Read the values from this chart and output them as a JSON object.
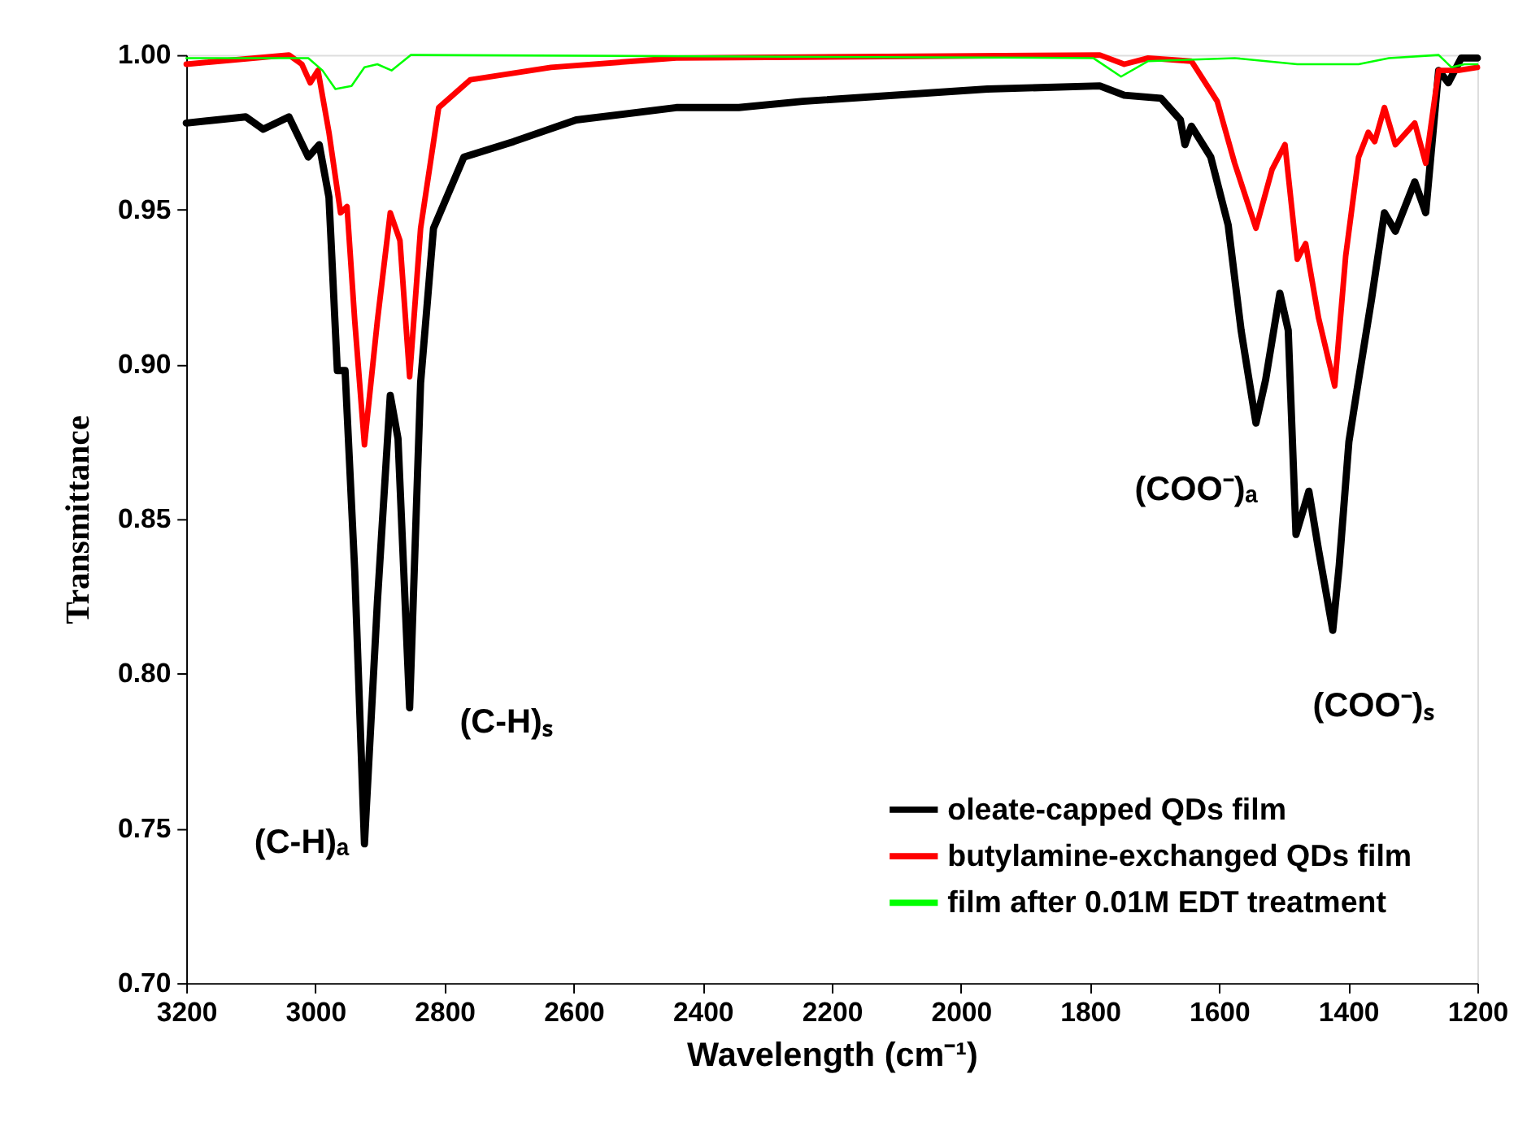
{
  "chart_data": {
    "type": "line",
    "xlabel": "Wavelength (cm⁻¹)",
    "ylabel": "Transmittance",
    "xlim": [
      3200,
      1200
    ],
    "xticks": [
      3200,
      3000,
      2800,
      2600,
      2400,
      2200,
      2000,
      1800,
      1600,
      1400,
      1200
    ],
    "ylim": [
      0.7,
      1.0
    ],
    "yticks": [
      {
        "value": 0.7,
        "label": "0.70"
      },
      {
        "value": 0.75,
        "label": "0.75"
      },
      {
        "value": 0.8,
        "label": "0.80"
      },
      {
        "value": 0.85,
        "label": "0.85"
      },
      {
        "value": 0.9,
        "label": "0.90"
      },
      {
        "value": 0.95,
        "label": "0.95"
      },
      {
        "value": 1.0,
        "label": "1.00"
      }
    ],
    "grid": false,
    "legend": "bottom right",
    "line_style": "solid",
    "marker": "none",
    "annotations": [
      "(C-H)ₐ",
      "(C-H)ₛ",
      "(COO⁻)ₐ",
      "(COO⁻)ₛ"
    ],
    "series": [
      {
        "name": "oleate-capped QDs film",
        "color": "#000000",
        "x": [
          3200,
          3108,
          3081,
          3041,
          3011,
          2994,
          2979,
          2966,
          2954,
          2939,
          2924,
          2904,
          2884,
          2872,
          2854,
          2837,
          2817,
          2770,
          2693,
          2596,
          2441,
          2344,
          2245,
          1959,
          1785,
          1747,
          1690,
          1660,
          1653,
          1643,
          1613,
          1586,
          1566,
          1543,
          1528,
          1506,
          1493,
          1481,
          1461,
          1446,
          1424,
          1414,
          1399,
          1384,
          1364,
          1344,
          1327,
          1297,
          1280,
          1260,
          1245,
          1225,
          1200
        ],
        "values": [
          0.978,
          0.98,
          0.976,
          0.98,
          0.967,
          0.971,
          0.954,
          0.898,
          0.898,
          0.833,
          0.745,
          0.823,
          0.89,
          0.876,
          0.789,
          0.894,
          0.944,
          0.967,
          0.972,
          0.979,
          0.983,
          0.983,
          0.985,
          0.989,
          0.99,
          0.987,
          0.986,
          0.979,
          0.971,
          0.977,
          0.967,
          0.945,
          0.911,
          0.881,
          0.895,
          0.923,
          0.911,
          0.845,
          0.859,
          0.84,
          0.814,
          0.835,
          0.875,
          0.895,
          0.921,
          0.949,
          0.943,
          0.959,
          0.949,
          0.995,
          0.991,
          0.999,
          0.999
        ]
      },
      {
        "name": "butylamine-exchanged QDs film",
        "color": "#ff0000",
        "x": [
          3200,
          3041,
          3021,
          3008,
          2996,
          2979,
          2961,
          2951,
          2939,
          2924,
          2904,
          2884,
          2869,
          2854,
          2837,
          2809,
          2760,
          2635,
          2441,
          1785,
          1747,
          1710,
          1643,
          1603,
          1576,
          1543,
          1518,
          1498,
          1479,
          1466,
          1446,
          1421,
          1404,
          1384,
          1369,
          1359,
          1344,
          1327,
          1297,
          1280,
          1260,
          1230,
          1200
        ],
        "values": [
          0.997,
          1.0,
          0.997,
          0.991,
          0.995,
          0.975,
          0.949,
          0.951,
          0.914,
          0.874,
          0.914,
          0.949,
          0.94,
          0.896,
          0.944,
          0.983,
          0.992,
          0.996,
          0.999,
          1.0,
          0.997,
          0.999,
          0.998,
          0.985,
          0.965,
          0.944,
          0.963,
          0.971,
          0.934,
          0.939,
          0.915,
          0.893,
          0.935,
          0.967,
          0.975,
          0.972,
          0.983,
          0.971,
          0.978,
          0.965,
          0.995,
          0.995,
          0.996
        ]
      },
      {
        "name": "film after 0.01M EDT treatment",
        "color": "#00ff00",
        "x": [
          3200,
          3011,
          2989,
          2969,
          2944,
          2924,
          2904,
          2882,
          2852,
          1795,
          1752,
          1710,
          1576,
          1479,
          1384,
          1337,
          1260,
          1240,
          1220,
          1200
        ],
        "values": [
          0.999,
          0.999,
          0.995,
          0.989,
          0.99,
          0.996,
          0.997,
          0.995,
          1.0,
          0.999,
          0.993,
          0.998,
          0.999,
          0.997,
          0.997,
          0.999,
          1.0,
          0.996,
          0.997,
          0.997
        ]
      }
    ]
  }
}
